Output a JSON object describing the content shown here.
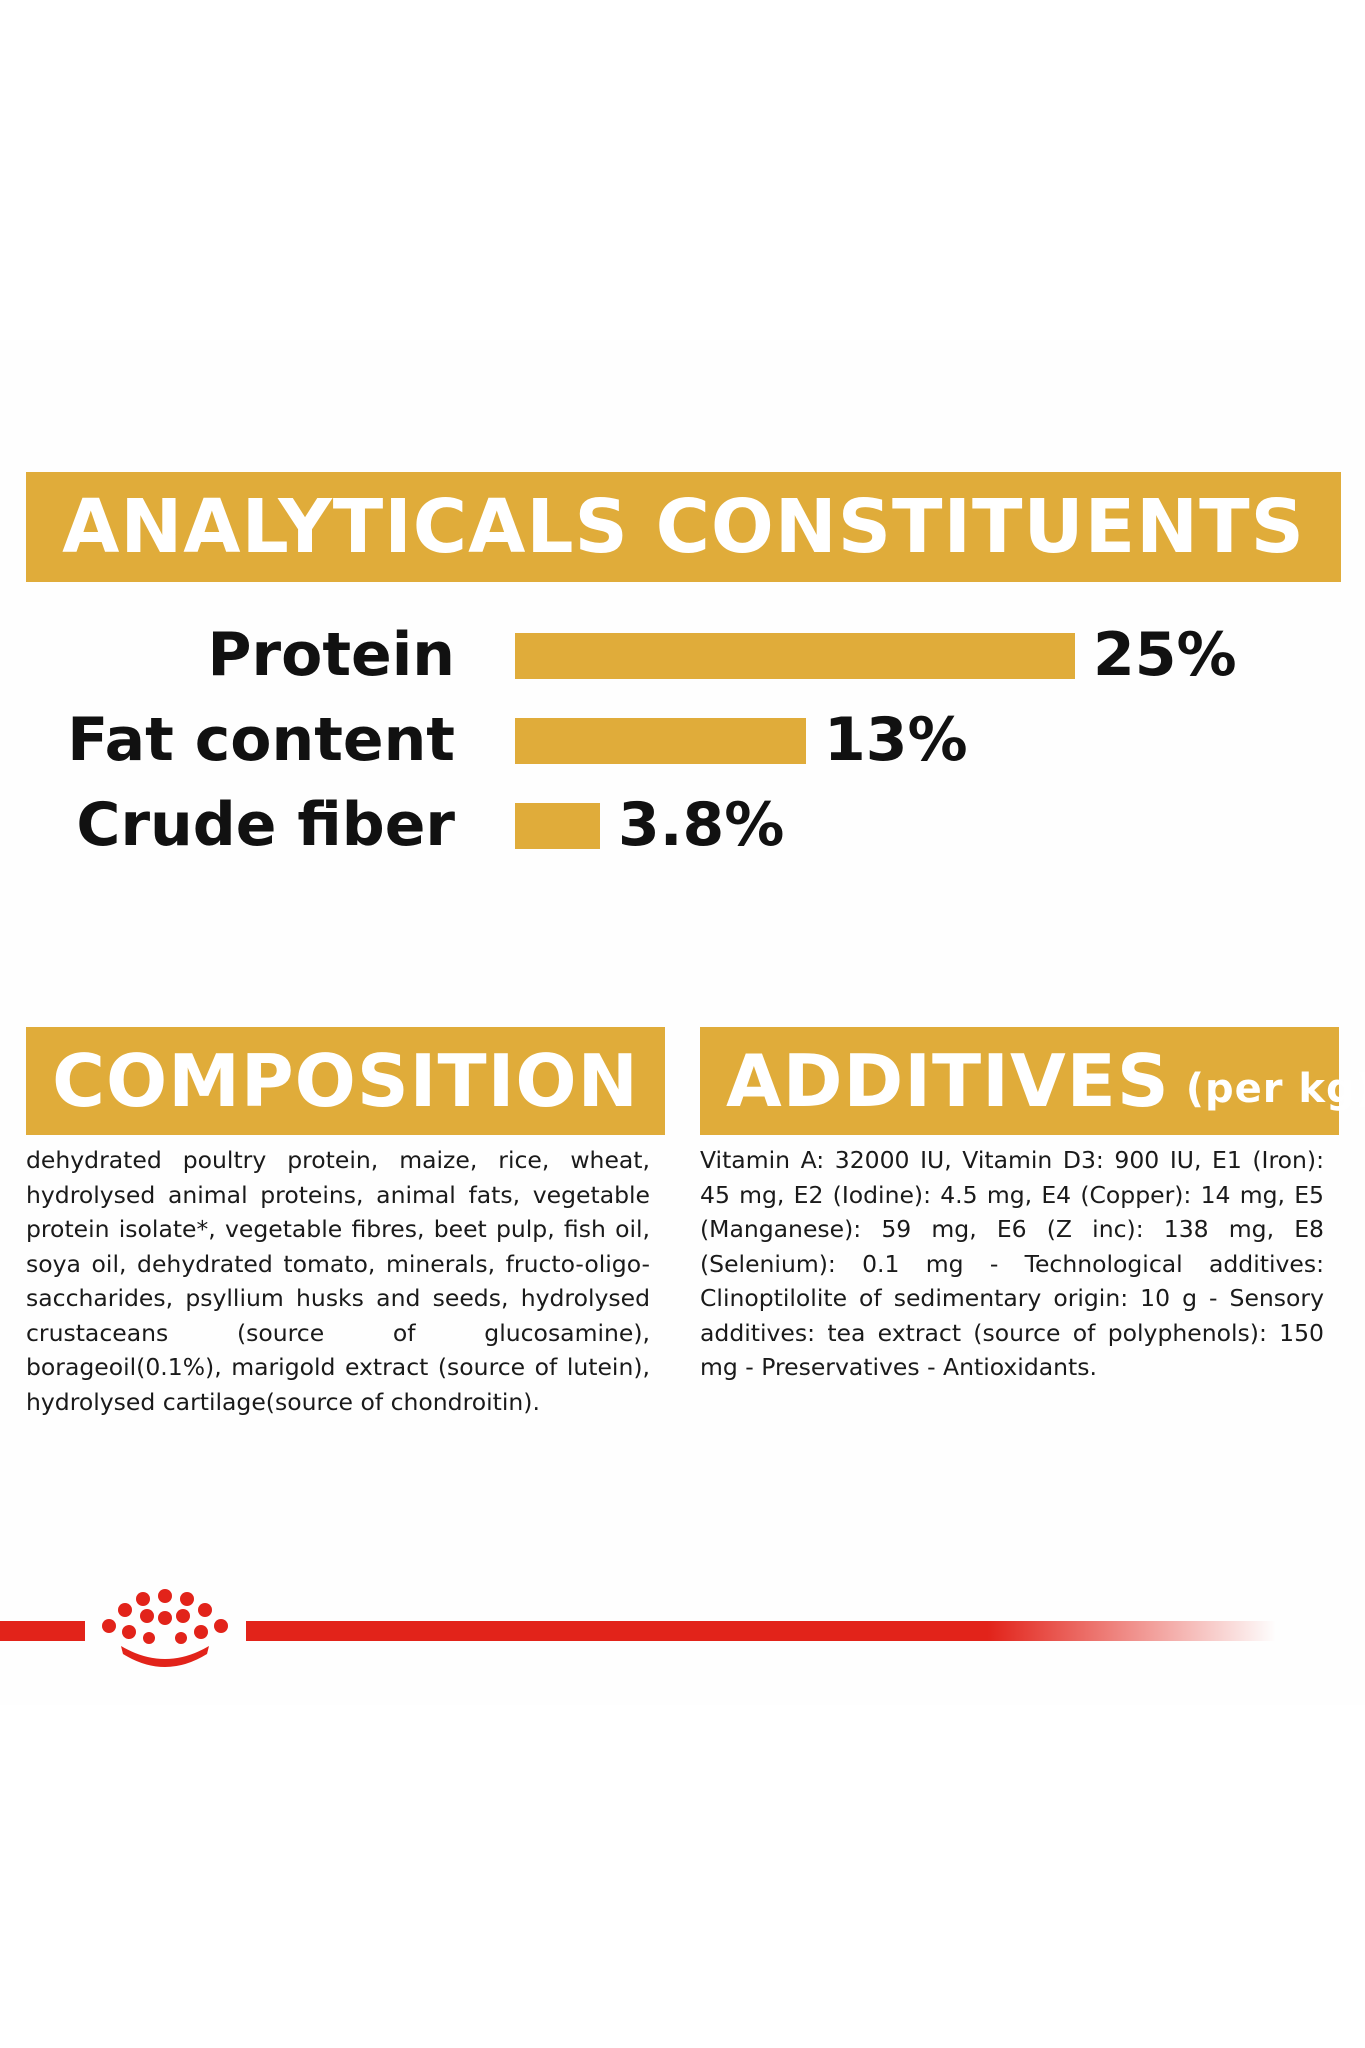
{
  "analytical": {
    "title": "ANALYTICALS CONSTITUENTS",
    "rows": [
      {
        "label": "Protein",
        "value": 25,
        "value_label": "25%"
      },
      {
        "label": "Fat content",
        "value": 13,
        "value_label": "13%"
      },
      {
        "label": "Crude fiber",
        "value": 3.8,
        "value_label": "3.8%"
      }
    ]
  },
  "chart_data": {
    "type": "bar",
    "categories": [
      "Protein",
      "Fat content",
      "Crude fiber"
    ],
    "values": [
      25,
      13,
      3.8
    ],
    "title": "ANALYTICALS CONSTITUENTS",
    "xlabel": "",
    "ylabel": "",
    "orientation": "horizontal",
    "unit": "%"
  },
  "composition": {
    "title": "COMPOSITION",
    "text": "dehydrated poultry protein, maize, rice, wheat, hydrolysed animal proteins, animal fats, vegetable protein isolate*, vegetable fibres, beet pulp, fish oil, soya oil, dehydrated tomato, minerals, fructo-oligo-saccharides, psyllium husks and seeds, hydrolysed crustaceans (source of glucosamine), borageoil(0.1%), marigold extract (source of lutein), hydrolysed cartilage(source of chondroitin)."
  },
  "additives": {
    "title": "ADDITIVES",
    "suffix": "(per kg)",
    "text": "Vitamin A: 32000 IU, Vitamin D3: 900 IU, E1 (Iron): 45 mg, E2 (Iodine): 4.5 mg, E4 (Copper): 14 mg, E5 (Manganese): 59 mg, E6 (Z inc): 138 mg, E8 (Selenium): 0.1 mg - Technological additives: Clinoptilolite of sedimentary origin: 10 g - Sensory additives: tea extract (source of polyphenols): 150 mg - Preservatives - Antioxidants."
  },
  "colors": {
    "accent": "#e0ac3a",
    "brand_red": "#e2231a",
    "text": "#111111"
  },
  "brand": {
    "icon": "crown-icon"
  }
}
